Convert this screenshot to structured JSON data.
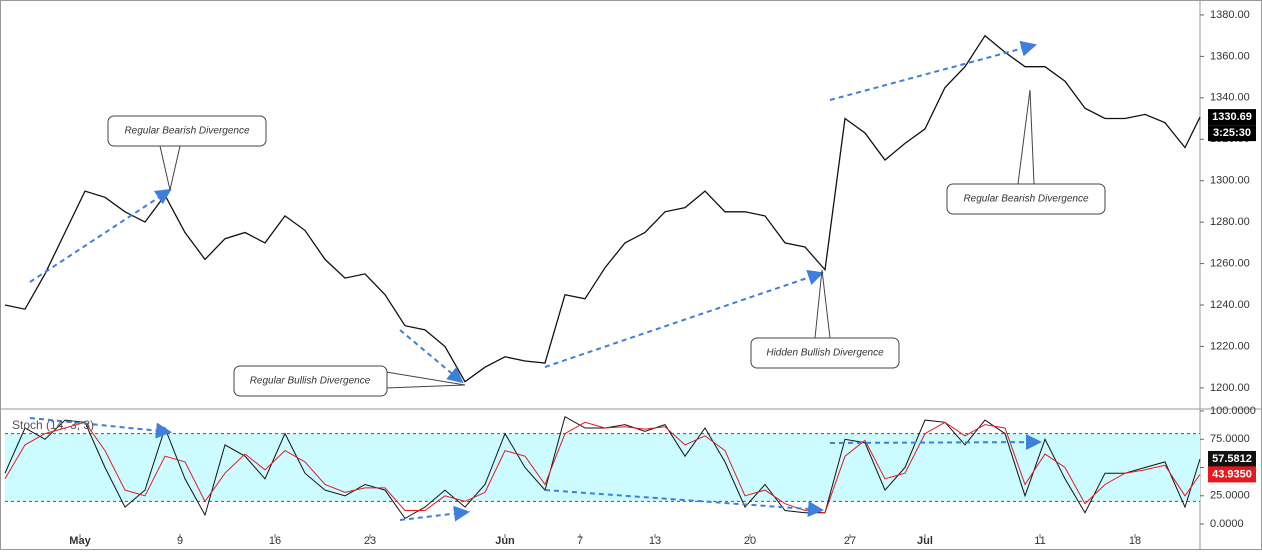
{
  "chart_data": [
    {
      "type": "line",
      "color": "#111111",
      "x": [
        0,
        4,
        8,
        12,
        16,
        20,
        24,
        28,
        32,
        36,
        40,
        44,
        48,
        52,
        56,
        60,
        64,
        68,
        72,
        76,
        80,
        84,
        88,
        92,
        96,
        100,
        104,
        108,
        112,
        116,
        120,
        124,
        128,
        132,
        136,
        140,
        144,
        148,
        152,
        156,
        160,
        164,
        168,
        172,
        176,
        180,
        184,
        188,
        192,
        196,
        200,
        204,
        208,
        212,
        216,
        220,
        224,
        228,
        232,
        236,
        239
      ],
      "values": [
        1240,
        1238,
        1255,
        1275,
        1295,
        1292,
        1285,
        1280,
        1293,
        1275,
        1262,
        1272,
        1275,
        1270,
        1283,
        1276,
        1262,
        1253,
        1255,
        1245,
        1230,
        1228,
        1220,
        1203,
        1210,
        1215,
        1213,
        1212,
        1245,
        1243,
        1258,
        1270,
        1275,
        1285,
        1287,
        1295,
        1285,
        1285,
        1283,
        1270,
        1268,
        1257,
        1330,
        1323,
        1310,
        1318,
        1325,
        1345,
        1355,
        1370,
        1362,
        1355,
        1355,
        1348,
        1335,
        1330,
        1330,
        1332,
        1328,
        1316,
        1330.69
      ],
      "xlim": [
        0,
        239
      ],
      "ylim": [
        1190.3,
        1384.8
      ],
      "yticks": [
        {
          "value": 1200,
          "label": "1200.00"
        },
        {
          "value": 1220,
          "label": "1220.00"
        },
        {
          "value": 1240,
          "label": "1240.00"
        },
        {
          "value": 1260,
          "label": "1260.00"
        },
        {
          "value": 1280,
          "label": "1280.00"
        },
        {
          "value": 1300,
          "label": "1300.00"
        },
        {
          "value": 1320,
          "label": "1320.00"
        },
        {
          "value": 1340,
          "label": "1340.00"
        },
        {
          "value": 1360,
          "label": "1360.00"
        },
        {
          "value": 1380,
          "label": "1380.00"
        }
      ],
      "countdown": "3:25:30",
      "annotations": [
        "Regular Bearish Divergence",
        "Regular Bullish Divergence",
        "Hidden Bullish Divergence",
        "Regular Bearish Divergence"
      ]
    },
    {
      "type": "line",
      "title": "Stoch (14, 3, 3)",
      "x": [
        0,
        4,
        8,
        12,
        16,
        20,
        24,
        28,
        32,
        36,
        40,
        44,
        48,
        52,
        56,
        60,
        64,
        68,
        72,
        76,
        80,
        84,
        88,
        92,
        96,
        100,
        104,
        108,
        112,
        116,
        120,
        124,
        128,
        132,
        136,
        140,
        144,
        148,
        152,
        156,
        160,
        164,
        168,
        172,
        176,
        180,
        184,
        188,
        192,
        196,
        200,
        204,
        208,
        212,
        216,
        220,
        224,
        228,
        232,
        236,
        239
      ],
      "series": [
        {
          "color": "#111111",
          "values": [
            45,
            85,
            75,
            92,
            90,
            50,
            15,
            30,
            85,
            40,
            8,
            70,
            60,
            40,
            80,
            45,
            30,
            25,
            35,
            30,
            5,
            15,
            30,
            15,
            35,
            80,
            50,
            30,
            95,
            85,
            85,
            88,
            82,
            88,
            60,
            85,
            55,
            15,
            35,
            12,
            10,
            10,
            75,
            72,
            30,
            50,
            92,
            90,
            70,
            92,
            80,
            25,
            75,
            40,
            10,
            45,
            45,
            50,
            55,
            15,
            57.5812
          ]
        },
        {
          "color": "#e8191c",
          "values": [
            40,
            70,
            80,
            85,
            90,
            65,
            30,
            25,
            60,
            55,
            20,
            45,
            62,
            48,
            65,
            55,
            35,
            28,
            32,
            32,
            12,
            12,
            25,
            20,
            28,
            65,
            60,
            35,
            80,
            90,
            85,
            86,
            84,
            86,
            70,
            78,
            65,
            25,
            30,
            18,
            12,
            10,
            60,
            74,
            40,
            45,
            80,
            90,
            78,
            88,
            85,
            35,
            62,
            50,
            18,
            35,
            45,
            48,
            52,
            25,
            43.935
          ],
          "last_label": "43.9350"
        }
      ],
      "band": [
        20,
        80
      ],
      "band_color": "#ccfcff",
      "xlim": [
        0,
        239
      ],
      "ylim": [
        -21.2,
        100.9
      ],
      "yticks": [
        {
          "value": 0,
          "label": "0.0000"
        },
        {
          "value": 25,
          "label": "25.0000"
        },
        {
          "value": 50,
          "label": "50.0000"
        },
        {
          "value": 75,
          "label": "75.0000"
        },
        {
          "value": 100,
          "label": "100.0000"
        }
      ],
      "xticks": [
        {
          "value": 15,
          "label": "May"
        },
        {
          "value": 35,
          "label": "9"
        },
        {
          "value": 54,
          "label": "16"
        },
        {
          "value": 73,
          "label": "23"
        },
        {
          "value": 100,
          "label": "Jun"
        },
        {
          "value": 115,
          "label": "7"
        },
        {
          "value": 130,
          "label": "13"
        },
        {
          "value": 149,
          "label": "20"
        },
        {
          "value": 169,
          "label": "27"
        },
        {
          "value": 184,
          "label": "Jul"
        },
        {
          "value": 207,
          "label": "11"
        },
        {
          "value": 226,
          "label": "18"
        }
      ]
    }
  ]
}
